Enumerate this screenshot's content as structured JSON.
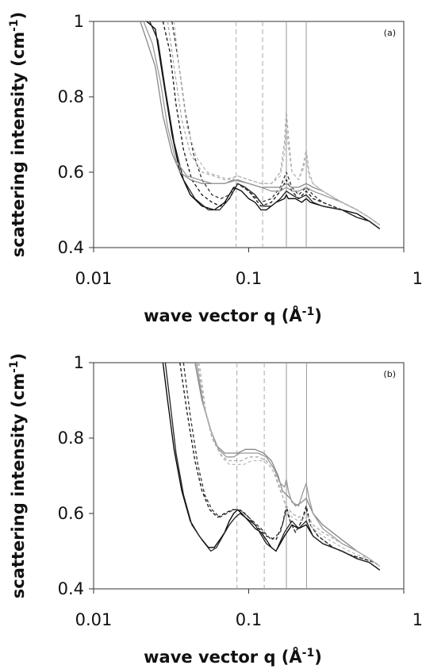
{
  "chart_data": [
    {
      "type": "line",
      "panel_label": "(a)",
      "xlabel_main": "wave vector q (Å",
      "xlabel_sup": "-1",
      "xlabel_end": ")",
      "ylabel_main": "scattering intensity (cm",
      "ylabel_sup": "-1",
      "ylabel_end": ")",
      "xscale": "log",
      "xlim": [
        0.01,
        1
      ],
      "ylim": [
        0.4,
        1
      ],
      "x_ticks": [
        0.01,
        0.1,
        1
      ],
      "x_tick_labels": [
        "0.01",
        "0.1",
        "1"
      ],
      "y_ticks": [
        0.4,
        0.6,
        0.8,
        1.0
      ],
      "y_tick_labels": [
        "0.4",
        "0.6",
        "0.8",
        "1"
      ],
      "grid": false,
      "legend": "none",
      "reference_lines": [
        {
          "x": 0.083,
          "style": "dashed",
          "color": "#aaaaaa"
        },
        {
          "x": 0.123,
          "style": "dashed",
          "color": "#aaaaaa"
        },
        {
          "x": 0.175,
          "style": "solid",
          "color": "#999999"
        },
        {
          "x": 0.235,
          "style": "solid",
          "color": "#999999"
        }
      ],
      "series": [
        {
          "color": "#000000",
          "dash": "solid",
          "x": [
            0.022,
            0.025,
            0.028,
            0.032,
            0.036,
            0.042,
            0.05,
            0.06,
            0.07,
            0.08,
            0.09,
            0.1,
            0.11,
            0.12,
            0.13,
            0.15,
            0.17,
            0.175,
            0.18,
            0.2,
            0.22,
            0.235,
            0.25,
            0.3,
            0.4,
            0.5,
            0.6,
            0.7
          ],
          "y": [
            1.0,
            0.98,
            0.85,
            0.7,
            0.6,
            0.54,
            0.51,
            0.5,
            0.52,
            0.56,
            0.55,
            0.53,
            0.52,
            0.5,
            0.5,
            0.52,
            0.53,
            0.54,
            0.53,
            0.53,
            0.52,
            0.53,
            0.52,
            0.51,
            0.5,
            0.49,
            0.47,
            0.45
          ]
        },
        {
          "color": "#222222",
          "dash": "solid",
          "x": [
            0.023,
            0.026,
            0.029,
            0.033,
            0.038,
            0.045,
            0.055,
            0.065,
            0.075,
            0.085,
            0.095,
            0.11,
            0.125,
            0.14,
            0.16,
            0.175,
            0.19,
            0.21,
            0.235,
            0.26,
            0.3,
            0.4,
            0.5,
            0.6,
            0.7
          ],
          "y": [
            1.0,
            0.95,
            0.82,
            0.68,
            0.58,
            0.53,
            0.5,
            0.5,
            0.53,
            0.57,
            0.56,
            0.54,
            0.51,
            0.51,
            0.53,
            0.55,
            0.54,
            0.53,
            0.54,
            0.52,
            0.51,
            0.5,
            0.48,
            0.47,
            0.45
          ]
        },
        {
          "color": "#111111",
          "dash": "dashed",
          "x": [
            0.028,
            0.031,
            0.034,
            0.038,
            0.043,
            0.05,
            0.058,
            0.066,
            0.075,
            0.085,
            0.1,
            0.12,
            0.14,
            0.16,
            0.175,
            0.19,
            0.21,
            0.235,
            0.26,
            0.3,
            0.4,
            0.5,
            0.6,
            0.7
          ],
          "y": [
            1.0,
            0.92,
            0.78,
            0.66,
            0.58,
            0.54,
            0.52,
            0.51,
            0.53,
            0.57,
            0.55,
            0.51,
            0.52,
            0.55,
            0.58,
            0.55,
            0.53,
            0.55,
            0.53,
            0.52,
            0.5,
            0.48,
            0.47,
            0.45
          ]
        },
        {
          "color": "#333333",
          "dash": "dashed",
          "x": [
            0.032,
            0.035,
            0.039,
            0.044,
            0.05,
            0.058,
            0.066,
            0.075,
            0.085,
            0.1,
            0.12,
            0.14,
            0.16,
            0.175,
            0.19,
            0.21,
            0.235,
            0.26,
            0.3,
            0.4,
            0.5,
            0.6,
            0.7
          ],
          "y": [
            1.0,
            0.9,
            0.76,
            0.65,
            0.58,
            0.54,
            0.53,
            0.54,
            0.57,
            0.55,
            0.52,
            0.53,
            0.56,
            0.6,
            0.56,
            0.54,
            0.56,
            0.54,
            0.52,
            0.5,
            0.48,
            0.47,
            0.45
          ]
        },
        {
          "color": "#888888",
          "dash": "solid",
          "x": [
            0.02,
            0.022,
            0.025,
            0.028,
            0.032,
            0.036,
            0.042,
            0.05,
            0.06,
            0.07,
            0.08,
            0.1,
            0.12,
            0.14,
            0.16,
            0.175,
            0.19,
            0.21,
            0.235,
            0.26,
            0.3,
            0.4,
            0.5,
            0.6,
            0.7
          ],
          "y": [
            1.0,
            0.95,
            0.88,
            0.75,
            0.65,
            0.6,
            0.58,
            0.57,
            0.57,
            0.57,
            0.58,
            0.57,
            0.56,
            0.56,
            0.56,
            0.57,
            0.56,
            0.56,
            0.57,
            0.56,
            0.55,
            0.52,
            0.5,
            0.48,
            0.46
          ]
        },
        {
          "color": "#999999",
          "dash": "solid",
          "x": [
            0.021,
            0.024,
            0.027,
            0.03,
            0.034,
            0.04,
            0.048,
            0.058,
            0.07,
            0.085,
            0.1,
            0.12,
            0.14,
            0.16,
            0.175,
            0.19,
            0.21,
            0.235,
            0.26,
            0.3,
            0.4,
            0.5,
            0.6,
            0.7
          ],
          "y": [
            1.0,
            0.94,
            0.84,
            0.72,
            0.63,
            0.59,
            0.58,
            0.57,
            0.57,
            0.58,
            0.57,
            0.56,
            0.55,
            0.55,
            0.56,
            0.55,
            0.55,
            0.56,
            0.55,
            0.54,
            0.52,
            0.5,
            0.48,
            0.46
          ]
        },
        {
          "color": "#aaaaaa",
          "dash": "dashed",
          "x": [
            0.03,
            0.033,
            0.037,
            0.042,
            0.05,
            0.06,
            0.07,
            0.085,
            0.1,
            0.12,
            0.14,
            0.16,
            0.17,
            0.175,
            0.18,
            0.19,
            0.21,
            0.225,
            0.235,
            0.245,
            0.26,
            0.3,
            0.4,
            0.5,
            0.6,
            0.7
          ],
          "y": [
            1.0,
            0.88,
            0.74,
            0.65,
            0.6,
            0.59,
            0.58,
            0.59,
            0.58,
            0.57,
            0.57,
            0.6,
            0.68,
            0.76,
            0.7,
            0.6,
            0.58,
            0.62,
            0.66,
            0.6,
            0.57,
            0.55,
            0.52,
            0.5,
            0.48,
            0.46
          ]
        },
        {
          "color": "#bbbbbb",
          "dash": "dashed",
          "x": [
            0.033,
            0.036,
            0.04,
            0.046,
            0.054,
            0.064,
            0.075,
            0.085,
            0.1,
            0.12,
            0.14,
            0.16,
            0.17,
            0.175,
            0.18,
            0.19,
            0.21,
            0.225,
            0.235,
            0.245,
            0.26,
            0.3,
            0.4,
            0.5,
            0.6,
            0.7
          ],
          "y": [
            1.0,
            0.86,
            0.72,
            0.64,
            0.6,
            0.59,
            0.58,
            0.59,
            0.58,
            0.57,
            0.57,
            0.59,
            0.65,
            0.72,
            0.67,
            0.6,
            0.58,
            0.61,
            0.64,
            0.59,
            0.57,
            0.55,
            0.52,
            0.5,
            0.48,
            0.46
          ]
        }
      ]
    },
    {
      "type": "line",
      "panel_label": "(b)",
      "xlabel_main": "wave vector q (Å",
      "xlabel_sup": "-1",
      "xlabel_end": ")",
      "ylabel_main": "scattering intensity (cm",
      "ylabel_sup": "-1",
      "ylabel_end": ")",
      "xscale": "log",
      "xlim": [
        0.01,
        1
      ],
      "ylim": [
        0.4,
        1
      ],
      "x_ticks": [
        0.01,
        0.1,
        1
      ],
      "x_tick_labels": [
        "0.01",
        "0.1",
        "1"
      ],
      "y_ticks": [
        0.4,
        0.6,
        0.8,
        1.0
      ],
      "y_tick_labels": [
        "0.4",
        "0.6",
        "0.8",
        "1"
      ],
      "grid": false,
      "legend": "none",
      "reference_lines": [
        {
          "x": 0.084,
          "style": "dashed",
          "color": "#aaaaaa"
        },
        {
          "x": 0.126,
          "style": "dashed",
          "color": "#aaaaaa"
        },
        {
          "x": 0.175,
          "style": "solid",
          "color": "#999999"
        },
        {
          "x": 0.236,
          "style": "solid",
          "color": "#999999"
        }
      ],
      "series": [
        {
          "color": "#000000",
          "dash": "solid",
          "x": [
            0.028,
            0.03,
            0.033,
            0.037,
            0.042,
            0.048,
            0.055,
            0.06,
            0.065,
            0.07,
            0.075,
            0.08,
            0.085,
            0.09,
            0.1,
            0.11,
            0.12,
            0.13,
            0.14,
            0.15,
            0.17,
            0.19,
            0.21,
            0.235,
            0.26,
            0.3,
            0.4,
            0.5,
            0.6,
            0.7
          ],
          "y": [
            1.0,
            0.9,
            0.77,
            0.66,
            0.58,
            0.54,
            0.51,
            0.51,
            0.53,
            0.55,
            0.58,
            0.6,
            0.61,
            0.6,
            0.58,
            0.56,
            0.55,
            0.53,
            0.51,
            0.5,
            0.54,
            0.57,
            0.56,
            0.57,
            0.54,
            0.52,
            0.5,
            0.48,
            0.47,
            0.45
          ]
        },
        {
          "color": "#222222",
          "dash": "solid",
          "x": [
            0.029,
            0.031,
            0.034,
            0.038,
            0.043,
            0.05,
            0.057,
            0.062,
            0.068,
            0.075,
            0.082,
            0.088,
            0.095,
            0.11,
            0.13,
            0.15,
            0.17,
            0.19,
            0.21,
            0.235,
            0.26,
            0.3,
            0.4,
            0.5,
            0.6,
            0.7
          ],
          "y": [
            1.0,
            0.9,
            0.76,
            0.65,
            0.57,
            0.53,
            0.5,
            0.51,
            0.54,
            0.57,
            0.59,
            0.6,
            0.59,
            0.57,
            0.52,
            0.5,
            0.55,
            0.58,
            0.56,
            0.58,
            0.54,
            0.52,
            0.5,
            0.48,
            0.47,
            0.45
          ]
        },
        {
          "color": "#111111",
          "dash": "dashed",
          "x": [
            0.036,
            0.04,
            0.045,
            0.05,
            0.056,
            0.063,
            0.07,
            0.078,
            0.085,
            0.095,
            0.11,
            0.13,
            0.15,
            0.165,
            0.175,
            0.185,
            0.2,
            0.22,
            0.235,
            0.25,
            0.28,
            0.35,
            0.45,
            0.55,
            0.65,
            0.7
          ],
          "y": [
            1.0,
            0.87,
            0.74,
            0.66,
            0.61,
            0.59,
            0.6,
            0.61,
            0.61,
            0.6,
            0.57,
            0.54,
            0.53,
            0.57,
            0.62,
            0.58,
            0.55,
            0.58,
            0.62,
            0.57,
            0.54,
            0.51,
            0.49,
            0.48,
            0.47,
            0.46
          ]
        },
        {
          "color": "#333333",
          "dash": "dashed",
          "x": [
            0.038,
            0.042,
            0.047,
            0.052,
            0.058,
            0.065,
            0.072,
            0.08,
            0.088,
            0.1,
            0.12,
            0.14,
            0.16,
            0.175,
            0.185,
            0.2,
            0.22,
            0.235,
            0.25,
            0.28,
            0.35,
            0.45,
            0.55,
            0.65,
            0.7
          ],
          "y": [
            1.0,
            0.86,
            0.73,
            0.65,
            0.61,
            0.59,
            0.6,
            0.61,
            0.61,
            0.59,
            0.56,
            0.53,
            0.55,
            0.61,
            0.58,
            0.55,
            0.58,
            0.61,
            0.57,
            0.54,
            0.51,
            0.49,
            0.48,
            0.47,
            0.46
          ]
        },
        {
          "color": "#888888",
          "dash": "solid",
          "x": [
            0.045,
            0.05,
            0.056,
            0.062,
            0.07,
            0.078,
            0.085,
            0.095,
            0.11,
            0.125,
            0.14,
            0.155,
            0.165,
            0.175,
            0.185,
            0.2,
            0.22,
            0.235,
            0.26,
            0.3,
            0.4,
            0.5,
            0.6,
            0.7
          ],
          "y": [
            1.0,
            0.9,
            0.83,
            0.78,
            0.76,
            0.76,
            0.76,
            0.77,
            0.77,
            0.76,
            0.74,
            0.7,
            0.66,
            0.65,
            0.64,
            0.62,
            0.63,
            0.64,
            0.6,
            0.57,
            0.53,
            0.5,
            0.48,
            0.46
          ]
        },
        {
          "color": "#999999",
          "dash": "solid",
          "x": [
            0.046,
            0.051,
            0.057,
            0.064,
            0.072,
            0.08,
            0.088,
            0.1,
            0.115,
            0.13,
            0.145,
            0.16,
            0.17,
            0.175,
            0.18,
            0.19,
            0.21,
            0.225,
            0.235,
            0.245,
            0.26,
            0.3,
            0.4,
            0.5,
            0.6,
            0.7
          ],
          "y": [
            1.0,
            0.89,
            0.82,
            0.77,
            0.75,
            0.75,
            0.76,
            0.76,
            0.76,
            0.75,
            0.72,
            0.68,
            0.67,
            0.69,
            0.66,
            0.63,
            0.62,
            0.66,
            0.68,
            0.64,
            0.6,
            0.56,
            0.52,
            0.5,
            0.48,
            0.46
          ]
        },
        {
          "color": "#aaaaaa",
          "dash": "dashed",
          "x": [
            0.047,
            0.052,
            0.058,
            0.065,
            0.073,
            0.082,
            0.09,
            0.1,
            0.115,
            0.13,
            0.145,
            0.16,
            0.175,
            0.19,
            0.21,
            0.235,
            0.26,
            0.3,
            0.4,
            0.5,
            0.6,
            0.7
          ],
          "y": [
            1.0,
            0.88,
            0.8,
            0.76,
            0.74,
            0.74,
            0.74,
            0.75,
            0.75,
            0.74,
            0.71,
            0.66,
            0.62,
            0.6,
            0.59,
            0.6,
            0.57,
            0.55,
            0.52,
            0.5,
            0.48,
            0.46
          ]
        },
        {
          "color": "#bbbbbb",
          "dash": "dashed",
          "x": [
            0.048,
            0.053,
            0.06,
            0.067,
            0.075,
            0.084,
            0.093,
            0.105,
            0.12,
            0.135,
            0.15,
            0.165,
            0.175,
            0.19,
            0.21,
            0.235,
            0.26,
            0.3,
            0.4,
            0.5,
            0.6,
            0.7
          ],
          "y": [
            1.0,
            0.87,
            0.79,
            0.75,
            0.73,
            0.73,
            0.73,
            0.74,
            0.74,
            0.73,
            0.7,
            0.65,
            0.61,
            0.59,
            0.58,
            0.59,
            0.56,
            0.54,
            0.51,
            0.49,
            0.48,
            0.46
          ]
        }
      ]
    }
  ]
}
